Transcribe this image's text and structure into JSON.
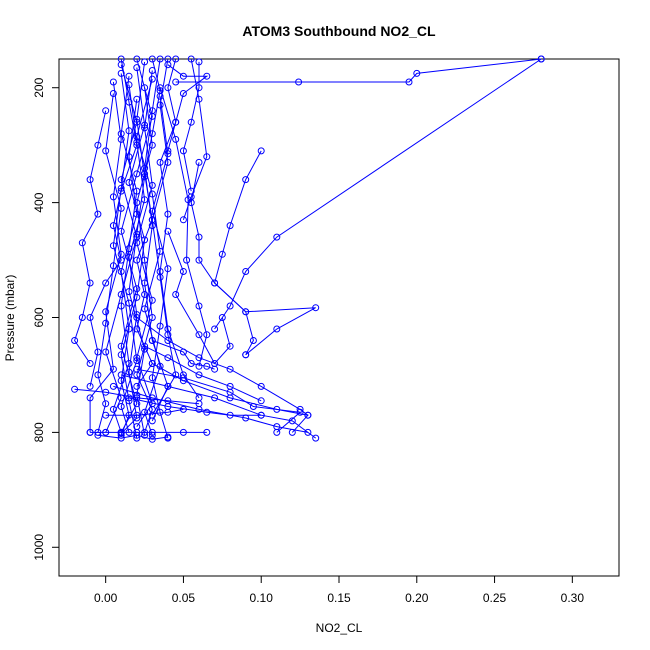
{
  "chart_data": {
    "type": "line",
    "title": "ATOM3 Southbound NO2_CL",
    "xlabel": "NO2_CL",
    "ylabel": "Pressure (mbar)",
    "xlim": [
      -0.03,
      0.33
    ],
    "ylim": [
      1050,
      150
    ],
    "y_reversed": true,
    "x_ticks": [
      "0.00",
      "0.05",
      "0.10",
      "0.15",
      "0.20",
      "0.25",
      "0.30"
    ],
    "y_ticks": [
      "200",
      "400",
      "600",
      "800",
      "1000"
    ],
    "series_color": "#0000ff",
    "marker": "open-circle",
    "series": [
      {
        "points": [
          [
            0.02,
            150
          ],
          [
            0.03,
            250
          ],
          [
            0.02,
            350
          ],
          [
            0.01,
            450
          ],
          [
            0.02,
            550
          ],
          [
            0.01,
            650
          ],
          [
            0.02,
            750
          ],
          [
            0.01,
            800
          ]
        ]
      },
      {
        "points": [
          [
            0.01,
            160
          ],
          [
            0.02,
            260
          ],
          [
            0.01,
            360
          ],
          [
            0.02,
            460
          ],
          [
            0.01,
            560
          ],
          [
            0.0,
            660
          ],
          [
            0.01,
            740
          ],
          [
            0.0,
            800
          ]
        ]
      },
      {
        "points": [
          [
            0.03,
            170
          ],
          [
            0.025,
            270
          ],
          [
            0.03,
            370
          ],
          [
            0.02,
            470
          ],
          [
            0.03,
            570
          ],
          [
            0.02,
            670
          ],
          [
            0.03,
            750
          ],
          [
            0.02,
            790
          ]
        ]
      },
      {
        "points": [
          [
            0.035,
            150
          ],
          [
            0.03,
            240
          ],
          [
            0.025,
            340
          ],
          [
            0.03,
            440
          ],
          [
            0.025,
            540
          ],
          [
            0.03,
            640
          ],
          [
            0.04,
            720
          ],
          [
            0.03,
            780
          ]
        ]
      },
      {
        "points": [
          [
            0.015,
            180
          ],
          [
            0.01,
            280
          ],
          [
            0.02,
            380
          ],
          [
            0.015,
            480
          ],
          [
            0.01,
            580
          ],
          [
            0.015,
            680
          ],
          [
            0.005,
            760
          ],
          [
            0.01,
            800
          ]
        ]
      },
      {
        "points": [
          [
            0.005,
            190
          ],
          [
            0.01,
            290
          ],
          [
            0.005,
            390
          ],
          [
            0.01,
            490
          ],
          [
            0.0,
            590
          ],
          [
            0.005,
            690
          ],
          [
            -0.01,
            740
          ],
          [
            -0.01,
            800
          ]
        ]
      },
      {
        "points": [
          [
            0.04,
            150
          ],
          [
            0.035,
            230
          ],
          [
            0.04,
            330
          ],
          [
            0.03,
            430
          ],
          [
            0.035,
            530
          ],
          [
            0.04,
            630
          ],
          [
            0.045,
            700
          ],
          [
            0.03,
            770
          ]
        ]
      },
      {
        "points": [
          [
            0.025,
            155
          ],
          [
            0.02,
            255
          ],
          [
            0.025,
            355
          ],
          [
            0.02,
            455
          ],
          [
            0.015,
            555
          ],
          [
            0.025,
            655
          ],
          [
            0.02,
            735
          ],
          [
            0.025,
            805
          ]
        ]
      },
      {
        "points": [
          [
            0.02,
            165
          ],
          [
            0.025,
            265
          ],
          [
            0.015,
            365
          ],
          [
            0.025,
            465
          ],
          [
            0.02,
            565
          ],
          [
            0.01,
            665
          ],
          [
            0.015,
            745
          ],
          [
            0.02,
            810
          ]
        ]
      },
      {
        "points": [
          [
            0.01,
            175
          ],
          [
            0.015,
            275
          ],
          [
            0.01,
            375
          ],
          [
            0.005,
            475
          ],
          [
            0.015,
            575
          ],
          [
            0.02,
            675
          ],
          [
            0.01,
            755
          ],
          [
            0.015,
            800
          ]
        ]
      },
      {
        "points": [
          [
            0.03,
            185
          ],
          [
            0.02,
            285
          ],
          [
            0.03,
            385
          ],
          [
            0.035,
            485
          ],
          [
            0.025,
            585
          ],
          [
            0.035,
            685
          ],
          [
            0.025,
            765
          ],
          [
            0.03,
            805
          ]
        ]
      },
      {
        "points": [
          [
            0.015,
            195
          ],
          [
            0.02,
            295
          ],
          [
            0.025,
            395
          ],
          [
            0.015,
            495
          ],
          [
            0.02,
            595
          ],
          [
            0.015,
            695
          ],
          [
            0.02,
            775
          ],
          [
            0.01,
            802
          ]
        ]
      },
      {
        "points": [
          [
            0.025,
            200
          ],
          [
            0.03,
            300
          ],
          [
            0.02,
            400
          ],
          [
            0.025,
            500
          ],
          [
            0.03,
            600
          ],
          [
            0.02,
            700
          ],
          [
            0.03,
            760
          ],
          [
            0.025,
            800
          ]
        ]
      },
      {
        "points": [
          [
            0.005,
            210
          ],
          [
            0.0,
            310
          ],
          [
            0.01,
            410
          ],
          [
            0.005,
            510
          ],
          [
            0.0,
            610
          ],
          [
            -0.005,
            700
          ],
          [
            0.0,
            750
          ],
          [
            -0.005,
            800
          ]
        ]
      },
      {
        "points": [
          [
            0.02,
            220
          ],
          [
            0.015,
            320
          ],
          [
            0.02,
            420
          ],
          [
            0.01,
            520
          ],
          [
            0.015,
            620
          ],
          [
            0.01,
            710
          ],
          [
            0.015,
            770
          ],
          [
            0.01,
            805
          ]
        ]
      },
      {
        "points": [
          [
            0.035,
            215
          ],
          [
            0.04,
            315
          ],
          [
            0.03,
            415
          ],
          [
            0.04,
            515
          ],
          [
            0.035,
            615
          ],
          [
            0.03,
            705
          ],
          [
            0.035,
            765
          ],
          [
            0.04,
            810
          ]
        ]
      },
      {
        "points": [
          [
            0.045,
            150
          ],
          [
            0.04,
            200
          ],
          [
            0.045,
            260
          ],
          [
            0.035,
            330
          ],
          [
            0.04,
            420
          ],
          [
            0.035,
            520
          ],
          [
            0.04,
            620
          ],
          [
            0.05,
            700
          ],
          [
            0.06,
            740
          ]
        ]
      },
      {
        "points": [
          [
            0.03,
            150
          ],
          [
            0.035,
            205
          ],
          [
            0.03,
            280
          ],
          [
            0.025,
            350
          ],
          [
            0.03,
            430
          ],
          [
            0.02,
            500
          ],
          [
            0.025,
            560
          ],
          [
            0.02,
            620
          ],
          [
            0.03,
            680
          ],
          [
            0.02,
            720
          ]
        ]
      },
      {
        "points": [
          [
            0.01,
            150
          ],
          [
            0.015,
            225
          ],
          [
            0.02,
            300
          ],
          [
            0.01,
            380
          ],
          [
            0.005,
            440
          ],
          [
            0.01,
            500
          ],
          [
            0.0,
            540
          ],
          [
            -0.01,
            600
          ],
          [
            -0.005,
            660
          ],
          [
            -0.01,
            720
          ]
        ]
      },
      {
        "points": [
          [
            0.0,
            240
          ],
          [
            -0.005,
            300
          ],
          [
            -0.01,
            360
          ],
          [
            -0.005,
            420
          ],
          [
            -0.015,
            470
          ],
          [
            -0.01,
            540
          ],
          [
            -0.015,
            600
          ],
          [
            -0.02,
            640
          ],
          [
            -0.01,
            680
          ]
        ]
      },
      {
        "points": [
          [
            0.04,
            160
          ],
          [
            0.05,
            180
          ],
          [
            0.065,
            180
          ],
          [
            0.05,
            210
          ],
          [
            0.045,
            260
          ],
          [
            0.04,
            310
          ]
        ]
      },
      {
        "points": [
          [
            0.055,
            150
          ],
          [
            0.06,
            220
          ],
          [
            0.065,
            320
          ],
          [
            0.055,
            390
          ],
          [
            0.05,
            430
          ]
        ]
      },
      {
        "points": [
          [
            0.06,
            155
          ],
          [
            0.06,
            200
          ],
          [
            0.055,
            260
          ],
          [
            0.05,
            310
          ],
          [
            0.055,
            380
          ]
        ]
      },
      {
        "points": [
          [
            0.045,
            190
          ],
          [
            0.124,
            190
          ],
          [
            0.195,
            190
          ],
          [
            0.2,
            175
          ],
          [
            0.28,
            150
          ]
        ]
      },
      {
        "points": [
          [
            0.28,
            150
          ],
          [
            0.11,
            460
          ],
          [
            0.09,
            520
          ],
          [
            0.08,
            580
          ],
          [
            0.07,
            620
          ]
        ]
      },
      {
        "points": [
          [
            0.1,
            310
          ],
          [
            0.09,
            360
          ],
          [
            0.08,
            440
          ],
          [
            0.075,
            490
          ],
          [
            0.07,
            540
          ],
          [
            0.09,
            590
          ],
          [
            0.095,
            640
          ],
          [
            0.09,
            665
          ]
        ]
      },
      {
        "points": [
          [
            0.06,
            330
          ],
          [
            0.055,
            400
          ],
          [
            0.06,
            460
          ],
          [
            0.06,
            500
          ],
          [
            0.07,
            540
          ],
          [
            0.09,
            590
          ],
          [
            0.135,
            583
          ],
          [
            0.11,
            620
          ],
          [
            0.09,
            665
          ]
        ]
      },
      {
        "points": [
          [
            0.035,
            200
          ],
          [
            0.045,
            290
          ],
          [
            0.053,
            395
          ],
          [
            0.052,
            500
          ],
          [
            0.06,
            580
          ],
          [
            0.065,
            630
          ],
          [
            0.06,
            685
          ]
        ]
      },
      {
        "points": [
          [
            0.04,
            450
          ],
          [
            0.05,
            520
          ],
          [
            0.045,
            560
          ],
          [
            0.06,
            630
          ],
          [
            0.07,
            680
          ],
          [
            0.08,
            650
          ],
          [
            0.075,
            600
          ]
        ]
      },
      {
        "points": [
          [
            0.02,
            600
          ],
          [
            0.04,
            640
          ],
          [
            0.06,
            670
          ],
          [
            0.08,
            690
          ],
          [
            0.1,
            720
          ],
          [
            0.125,
            760
          ],
          [
            0.13,
            770
          ]
        ]
      },
      {
        "points": [
          [
            0.03,
            680
          ],
          [
            0.05,
            710
          ],
          [
            0.08,
            740
          ],
          [
            0.11,
            760
          ],
          [
            0.13,
            770
          ],
          [
            0.12,
            800
          ]
        ]
      },
      {
        "points": [
          [
            0.01,
            700
          ],
          [
            0.04,
            720
          ],
          [
            0.07,
            740
          ],
          [
            0.1,
            770
          ],
          [
            0.12,
            780
          ],
          [
            0.135,
            810
          ]
        ]
      },
      {
        "points": [
          [
            0.005,
            720
          ],
          [
            0.03,
            740
          ],
          [
            0.06,
            760
          ],
          [
            0.09,
            775
          ],
          [
            0.11,
            790
          ],
          [
            0.13,
            800
          ]
        ]
      },
      {
        "points": [
          [
            0.02,
            690
          ],
          [
            0.05,
            705
          ],
          [
            0.08,
            730
          ],
          [
            0.095,
            755
          ],
          [
            0.125,
            765
          ],
          [
            0.11,
            800
          ]
        ]
      },
      {
        "points": [
          [
            0.015,
            740
          ],
          [
            0.04,
            755
          ],
          [
            0.065,
            765
          ],
          [
            0.08,
            770
          ],
          [
            0.1,
            770
          ]
        ]
      },
      {
        "points": [
          [
            -0.02,
            725
          ],
          [
            0.0,
            730
          ],
          [
            0.02,
            740
          ],
          [
            0.04,
            745
          ],
          [
            0.06,
            750
          ]
        ]
      },
      {
        "points": [
          [
            -0.01,
            800
          ],
          [
            0.0,
            800
          ],
          [
            0.01,
            800
          ],
          [
            0.02,
            800
          ],
          [
            0.03,
            800
          ],
          [
            0.05,
            800
          ],
          [
            0.065,
            800
          ]
        ]
      },
      {
        "points": [
          [
            -0.005,
            805
          ],
          [
            0.01,
            810
          ],
          [
            0.02,
            805
          ],
          [
            0.03,
            812
          ],
          [
            0.04,
            808
          ]
        ]
      },
      {
        "points": [
          [
            0.0,
            770
          ],
          [
            0.02,
            770
          ],
          [
            0.04,
            765
          ],
          [
            0.05,
            760
          ]
        ]
      },
      {
        "points": [
          [
            0.03,
            640
          ],
          [
            0.05,
            660
          ],
          [
            0.055,
            680
          ],
          [
            0.065,
            685
          ],
          [
            0.07,
            690
          ]
        ]
      },
      {
        "points": [
          [
            0.025,
            650
          ],
          [
            0.04,
            670
          ],
          [
            0.06,
            700
          ],
          [
            0.08,
            720
          ],
          [
            0.1,
            745
          ]
        ]
      }
    ]
  }
}
